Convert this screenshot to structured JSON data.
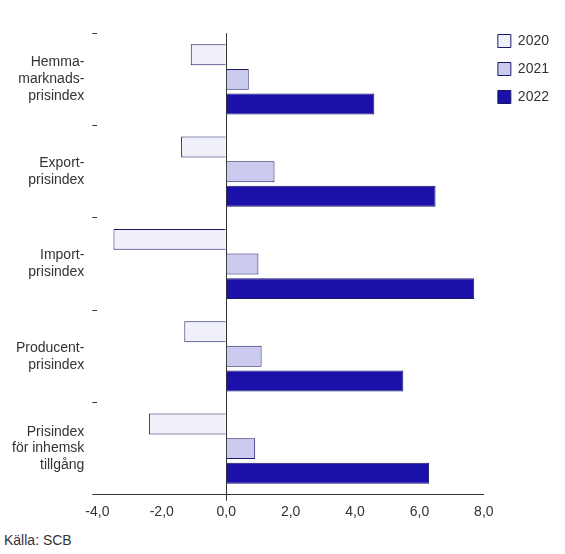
{
  "chart_data": {
    "type": "bar",
    "orientation": "horizontal",
    "categories": [
      [
        "Hemma-",
        "marknads-",
        "prisindex"
      ],
      [
        "Export-",
        "prisindex"
      ],
      [
        "Import-",
        "prisindex"
      ],
      [
        "Producent-",
        "prisindex"
      ],
      [
        "Prisindex",
        "för inhemsk",
        "tillgång"
      ]
    ],
    "series": [
      {
        "name": "2020",
        "color": "#f0f0fa",
        "values": [
          -1.1,
          -1.4,
          -3.5,
          -1.3,
          -2.4
        ]
      },
      {
        "name": "2021",
        "color": "#cbcbf0",
        "values": [
          0.7,
          1.5,
          1.0,
          1.1,
          0.9
        ]
      },
      {
        "name": "2022",
        "color": "#1c10aa",
        "values": [
          4.6,
          6.5,
          7.7,
          5.5,
          6.3
        ]
      }
    ],
    "xlim": [
      -4,
      8
    ],
    "xticks": [
      {
        "value": -4,
        "label": "-4,0"
      },
      {
        "value": -2,
        "label": "-2,0"
      },
      {
        "value": 0,
        "label": "0,0"
      },
      {
        "value": 2,
        "label": "2,0"
      },
      {
        "value": 4,
        "label": "4,0"
      },
      {
        "value": 6,
        "label": "6,0"
      },
      {
        "value": 8,
        "label": "8,0"
      }
    ],
    "grid": false,
    "legend": "top-right",
    "annotations": [
      "Källa: SCB"
    ]
  }
}
